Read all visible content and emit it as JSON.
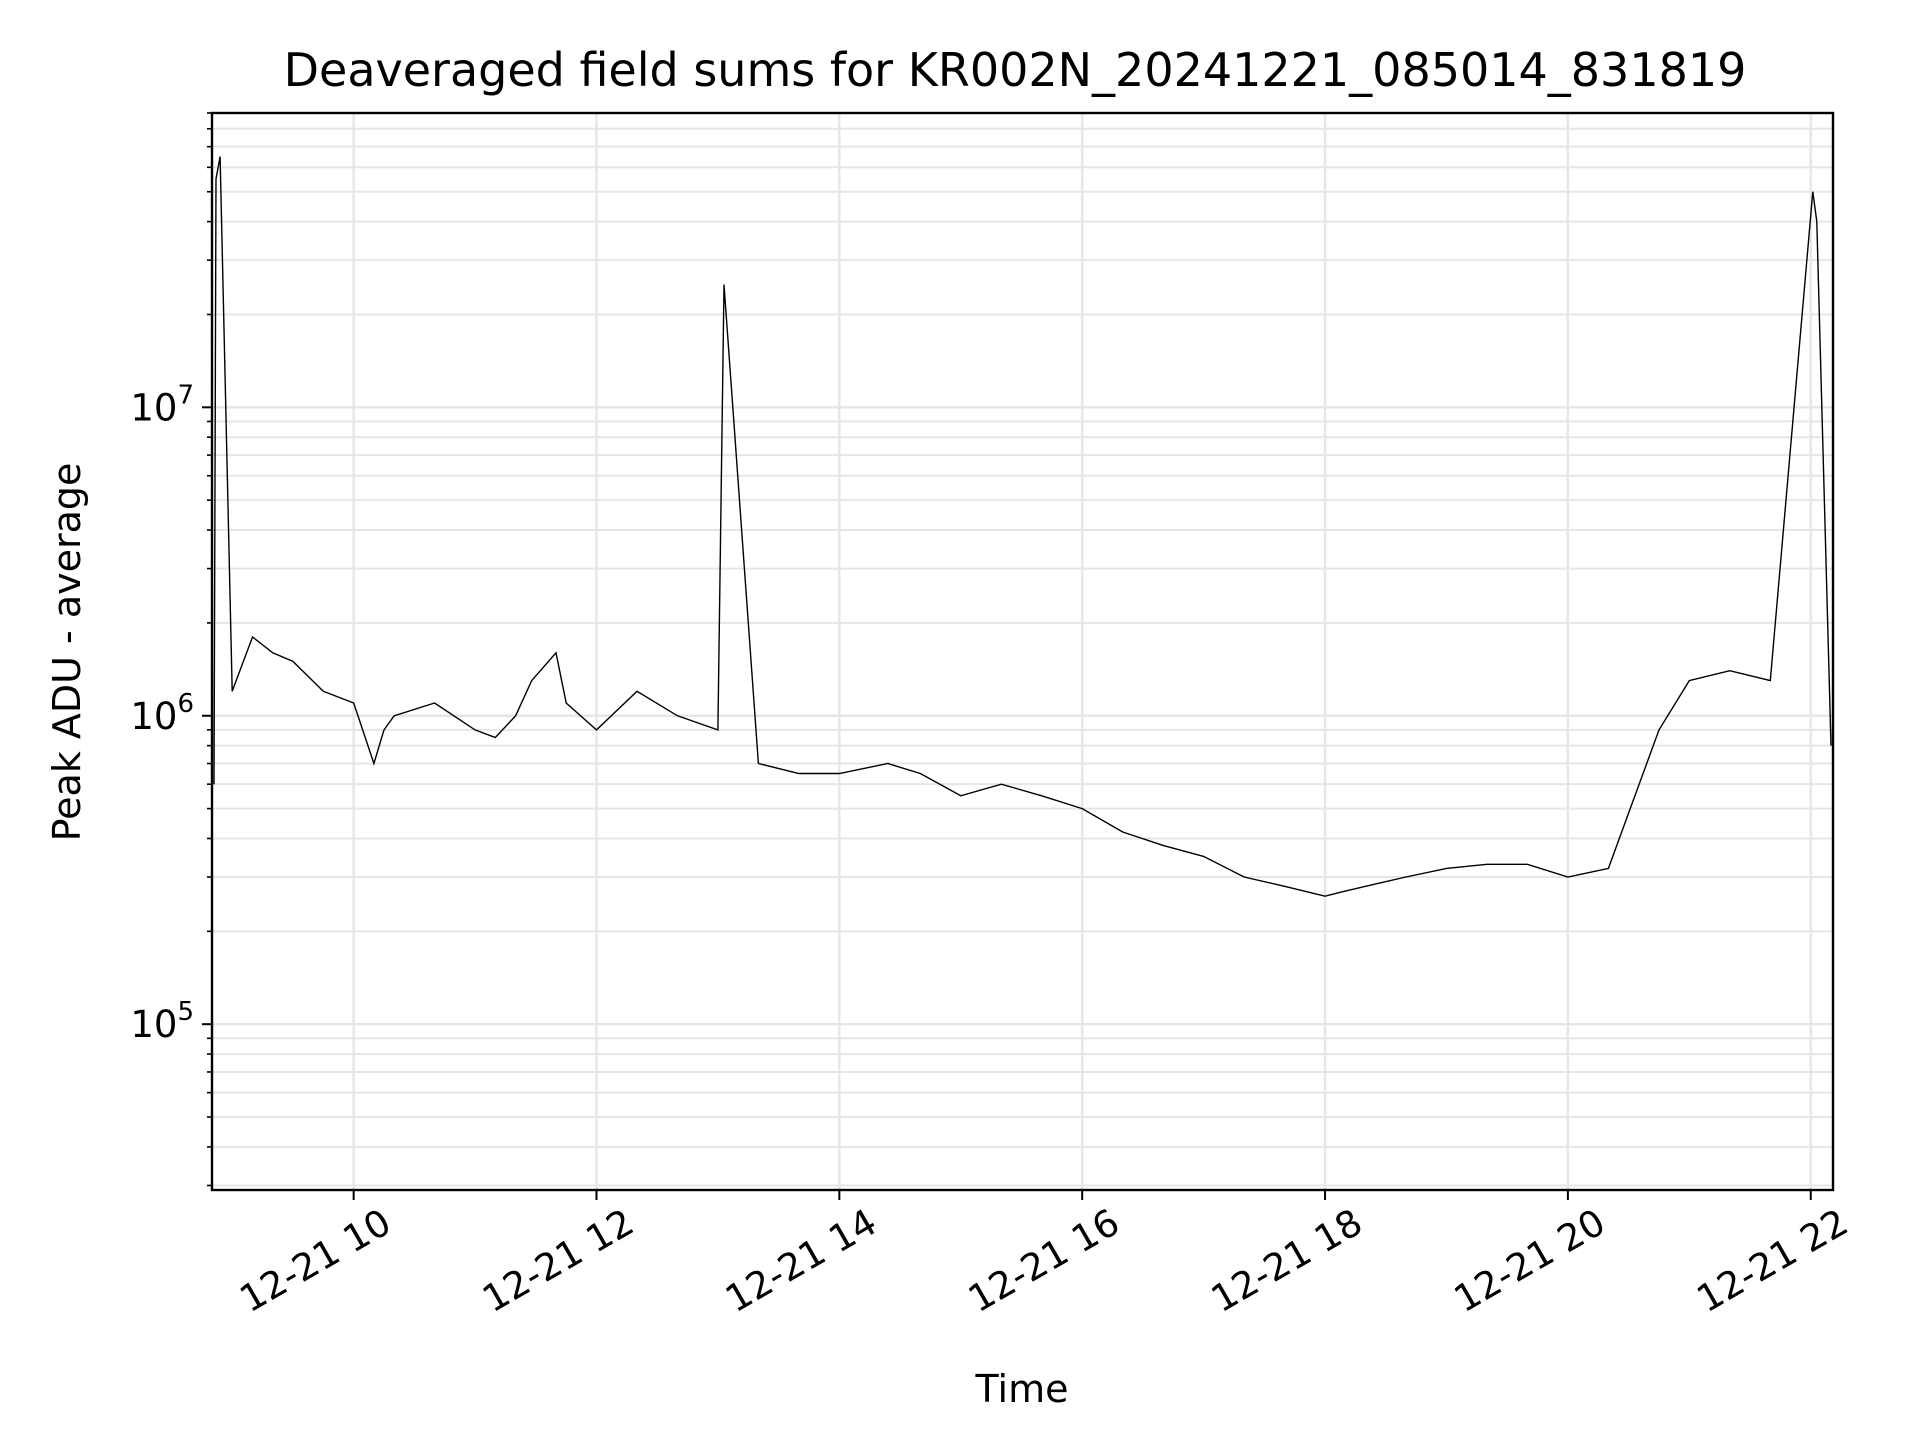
{
  "chart_data": {
    "type": "line",
    "title": "Deaveraged field sums for KR002N_20241221_085014_831819",
    "xlabel": "Time",
    "ylabel": "Peak ADU - average",
    "x_scale": "time",
    "y_scale": "log",
    "xlim": [
      "2024-12-21 08:50",
      "2024-12-21 22:11"
    ],
    "ylim": [
      29000,
      90000000
    ],
    "x_ticks": [
      "12-21 10",
      "12-21 12",
      "12-21 14",
      "12-21 16",
      "12-21 18",
      "12-21 20",
      "12-21 22"
    ],
    "y_ticks": [
      {
        "base": "10",
        "exp": "5",
        "value": 100000
      },
      {
        "base": "10",
        "exp": "6",
        "value": 1000000
      },
      {
        "base": "10",
        "exp": "7",
        "value": 10000000
      }
    ],
    "grid": "major and minor",
    "line_color": "#000000",
    "series": [
      {
        "x": [
          "2024-12-21 08:51",
          "2024-12-21 08:52",
          "2024-12-21 08:54",
          "2024-12-21 09:00",
          "2024-12-21 09:10",
          "2024-12-21 09:20",
          "2024-12-21 09:30",
          "2024-12-21 09:45",
          "2024-12-21 10:00",
          "2024-12-21 10:10",
          "2024-12-21 10:15",
          "2024-12-21 10:20",
          "2024-12-21 10:40",
          "2024-12-21 11:00",
          "2024-12-21 11:10",
          "2024-12-21 11:20",
          "2024-12-21 11:28",
          "2024-12-21 11:40",
          "2024-12-21 11:45",
          "2024-12-21 12:00",
          "2024-12-21 12:20",
          "2024-12-21 12:40",
          "2024-12-21 13:00",
          "2024-12-21 13:03",
          "2024-12-21 13:20",
          "2024-12-21 13:40",
          "2024-12-21 14:00",
          "2024-12-21 14:24",
          "2024-12-21 14:40",
          "2024-12-21 15:00",
          "2024-12-21 15:20",
          "2024-12-21 15:40",
          "2024-12-21 16:00",
          "2024-12-21 16:20",
          "2024-12-21 16:40",
          "2024-12-21 17:00",
          "2024-12-21 17:20",
          "2024-12-21 17:40",
          "2024-12-21 18:00",
          "2024-12-21 18:10",
          "2024-12-21 18:20",
          "2024-12-21 18:40",
          "2024-12-21 19:00",
          "2024-12-21 19:20",
          "2024-12-21 19:40",
          "2024-12-21 20:00",
          "2024-12-21 20:20",
          "2024-12-21 20:45",
          "2024-12-21 21:00",
          "2024-12-21 21:20",
          "2024-12-21 21:40",
          "2024-12-21 22:01",
          "2024-12-21 22:03",
          "2024-12-21 22:10"
        ],
        "y": [
          600000,
          55000000,
          65000000,
          1200000,
          1800000,
          1600000,
          1500000,
          1200000,
          1100000,
          700000,
          900000,
          1000000,
          1100000,
          900000,
          850000,
          1000000,
          1300000,
          1600000,
          1100000,
          900000,
          1200000,
          1000000,
          900000,
          25000000,
          700000,
          650000,
          650000,
          700000,
          650000,
          550000,
          600000,
          550000,
          500000,
          420000,
          380000,
          350000,
          300000,
          280000,
          260000,
          270000,
          280000,
          300000,
          320000,
          330000,
          330000,
          300000,
          320000,
          900000,
          1300000,
          1400000,
          1300000,
          50000000,
          40000000,
          800000
        ]
      }
    ]
  }
}
